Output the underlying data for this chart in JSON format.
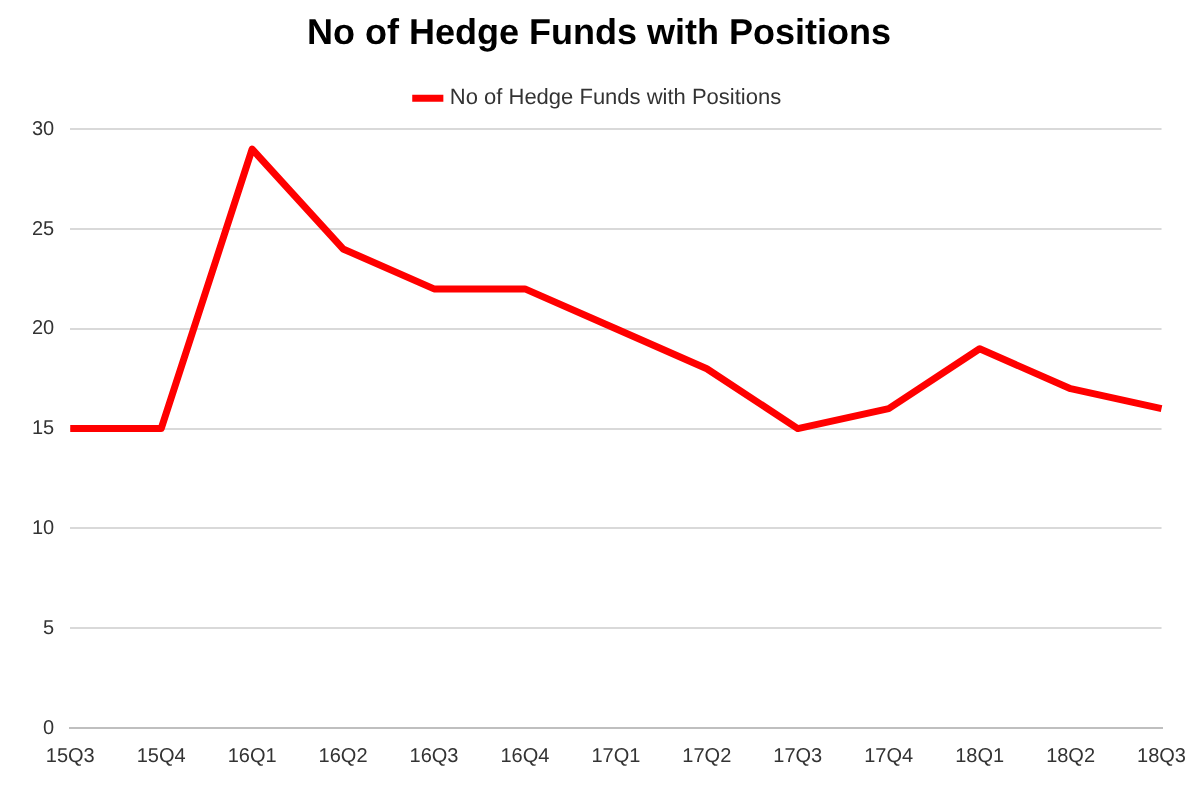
{
  "chart_data": {
    "type": "line",
    "title": "No of Hedge Funds with Positions",
    "categories": [
      "15Q3",
      "15Q4",
      "16Q1",
      "16Q2",
      "16Q3",
      "16Q4",
      "17Q1",
      "17Q2",
      "17Q3",
      "17Q4",
      "18Q1",
      "18Q2",
      "18Q3"
    ],
    "series": [
      {
        "name": "No of Hedge Funds with Positions",
        "color": "#ff0000",
        "values": [
          15,
          15,
          29,
          24,
          22,
          22,
          20,
          18,
          15,
          16,
          19,
          17,
          16
        ]
      }
    ],
    "ylim": [
      0,
      30
    ],
    "yticks": [
      0,
      5,
      10,
      15,
      20,
      25,
      30
    ],
    "grid": "y",
    "legend": "top",
    "marker": "none",
    "line_style": "solid"
  }
}
